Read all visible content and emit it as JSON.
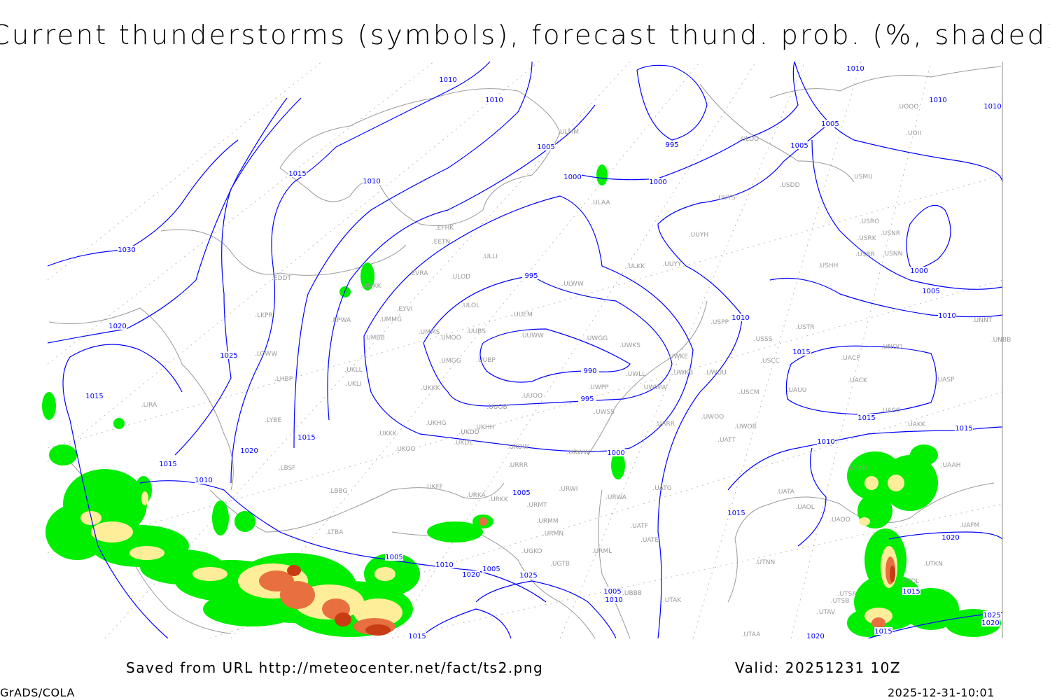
{
  "title": "Current thunderstorms (symbols), forecast thund. prob. (%, shaded)",
  "footer": {
    "saved_from": "Saved from URL http://meteocenter.net/fact/ts2.png",
    "valid": "Valid: 20251231 10Z",
    "software": "GrADS/COLA",
    "timestamp": "2025-12-31-10:01"
  },
  "colors": {
    "isobar": "#0000ff",
    "coastline": "#999999",
    "prob_low": "#00ee00",
    "prob_mid": "#ffee99",
    "prob_high": "#e87040",
    "prob_max": "#c83c14"
  },
  "stations": [
    "ULMM",
    "ULDD",
    "UUYS",
    "USDD",
    "USMU",
    "UOOO",
    "UOII",
    "USRO",
    "USRK",
    "USNR",
    "USRR",
    "USNN",
    "USHH",
    "UUYH",
    "UUYY",
    "ULKK",
    "ULWW",
    "ULAA",
    "EFHK",
    "EETN",
    "ULLI",
    "EVRA",
    "ULOD",
    "UMKK",
    "EYVI",
    "ULOL",
    "UUEM",
    "UMMG",
    "UMMS",
    "UUBS",
    "UMOO",
    "UUWW",
    "UWGG",
    "UWKS",
    "UMGG",
    "UUBP",
    "UWLL",
    "UWKE",
    "UWKB",
    "UWUU",
    "UWWW",
    "UKKK",
    "UWPP",
    "UUOO",
    "UUOB",
    "UWSS",
    "UKHH",
    "UKDD",
    "UKHG",
    "UKDE",
    "UKOO",
    "UKOW",
    "URWW",
    "URRR",
    "UKFF",
    "URKA",
    "URKK",
    "URWI",
    "URMT",
    "URMM",
    "URWA",
    "URMN",
    "UGKO",
    "URML",
    "UATG",
    "UATF",
    "UATE",
    "UWOO",
    "UWOR",
    "UATT",
    "UARR",
    "USCM",
    "UAUU",
    "USCC",
    "USSS",
    "USTR",
    "USPP",
    "UACP",
    "UACK",
    "UNOO",
    "UASP",
    "UACC",
    "UAKK",
    "UNBB",
    "UNNT",
    "UAAH",
    "UAKD",
    "UATA",
    "UAOL",
    "UAOO",
    "UAFM",
    "UTNN",
    "UTSA",
    "UTSB",
    "UTAV",
    "UTAA",
    "UTAK",
    "UBBB",
    "LKPR",
    "LOWW",
    "EDDT",
    "EPWA",
    "UMBB",
    "UKLL",
    "UKLI",
    "LHBP",
    "LYBE",
    "LBSF",
    "LBBG",
    "LTBA",
    "UKKK",
    "LIRA",
    "UGTB",
    "UTDL",
    "UTKN"
  ],
  "isobar_labels": [
    "1010",
    "1010",
    "1015",
    "1010",
    "1005",
    "995",
    "1000",
    "1000",
    "1030",
    "995",
    "1020",
    "1025",
    "990",
    "995",
    "1015",
    "1015",
    "1020",
    "1015",
    "1010",
    "1000",
    "1005",
    "1005",
    "1010",
    "1020",
    "1005",
    "1025",
    "1005",
    "1010",
    "1015",
    "1010",
    "1010",
    "1010",
    "1005",
    "1005",
    "1000",
    "1005",
    "1010",
    "1010",
    "1015",
    "1015",
    "1015",
    "1010",
    "1015",
    "1020",
    "1015",
    "1025",
    "1020",
    "1015",
    "1020"
  ]
}
